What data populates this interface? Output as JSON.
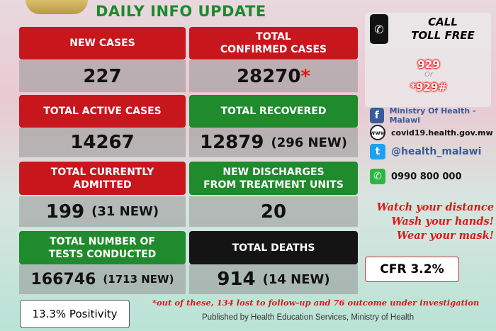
{
  "header": {
    "title": "DAILY INFO UPDATE"
  },
  "stats": {
    "new_cases": {
      "label": "NEW CASES",
      "value": "227"
    },
    "total_confirmed": {
      "label": "TOTAL\nCONFIRMED CASES",
      "value": "28270",
      "marker": "*"
    },
    "active": {
      "label": "TOTAL ACTIVE CASES",
      "value": "14267"
    },
    "recovered": {
      "label": "TOTAL RECOVERED",
      "value": "12879",
      "new": "(296 NEW)"
    },
    "admitted": {
      "label": "TOTAL CURRENTLY\nADMITTED",
      "value": "199",
      "new": "(31 NEW)"
    },
    "discharges": {
      "label": "NEW  DISCHARGES\nFROM  TREATMENT UNITS",
      "value": "20"
    },
    "tests": {
      "label": "TOTAL NUMBER OF\nTESTS CONDUCTED",
      "value": "166746",
      "new": "(1713 NEW)"
    },
    "deaths": {
      "label": "TOTAL DEATHS",
      "value": "914",
      "new": "(14 NEW)"
    }
  },
  "sidebar": {
    "call_title": "CALL\nTOLL FREE",
    "number1": "929",
    "or": "Or",
    "number2": "*929#",
    "facebook": "Ministry Of Health - Malawi",
    "website": "covid19.health.gov.mw",
    "twitter": "@health_malawi",
    "whatsapp": "0990 800 000",
    "warnings": [
      "Watch your distance",
      "Wash your hands!",
      "Wear your mask!"
    ],
    "cfr": "CFR 3.2%"
  },
  "positivity": "13.3% Positivity",
  "footnote": "*out of these, 134 lost to follow-up and 76 outcome under investigation",
  "publisher": "Published by Health Education Services, Ministry of Health",
  "colors": {
    "red": "#c8161d",
    "green": "#1f8b2c",
    "black": "#141414",
    "title_green": "#1c8a2a"
  }
}
